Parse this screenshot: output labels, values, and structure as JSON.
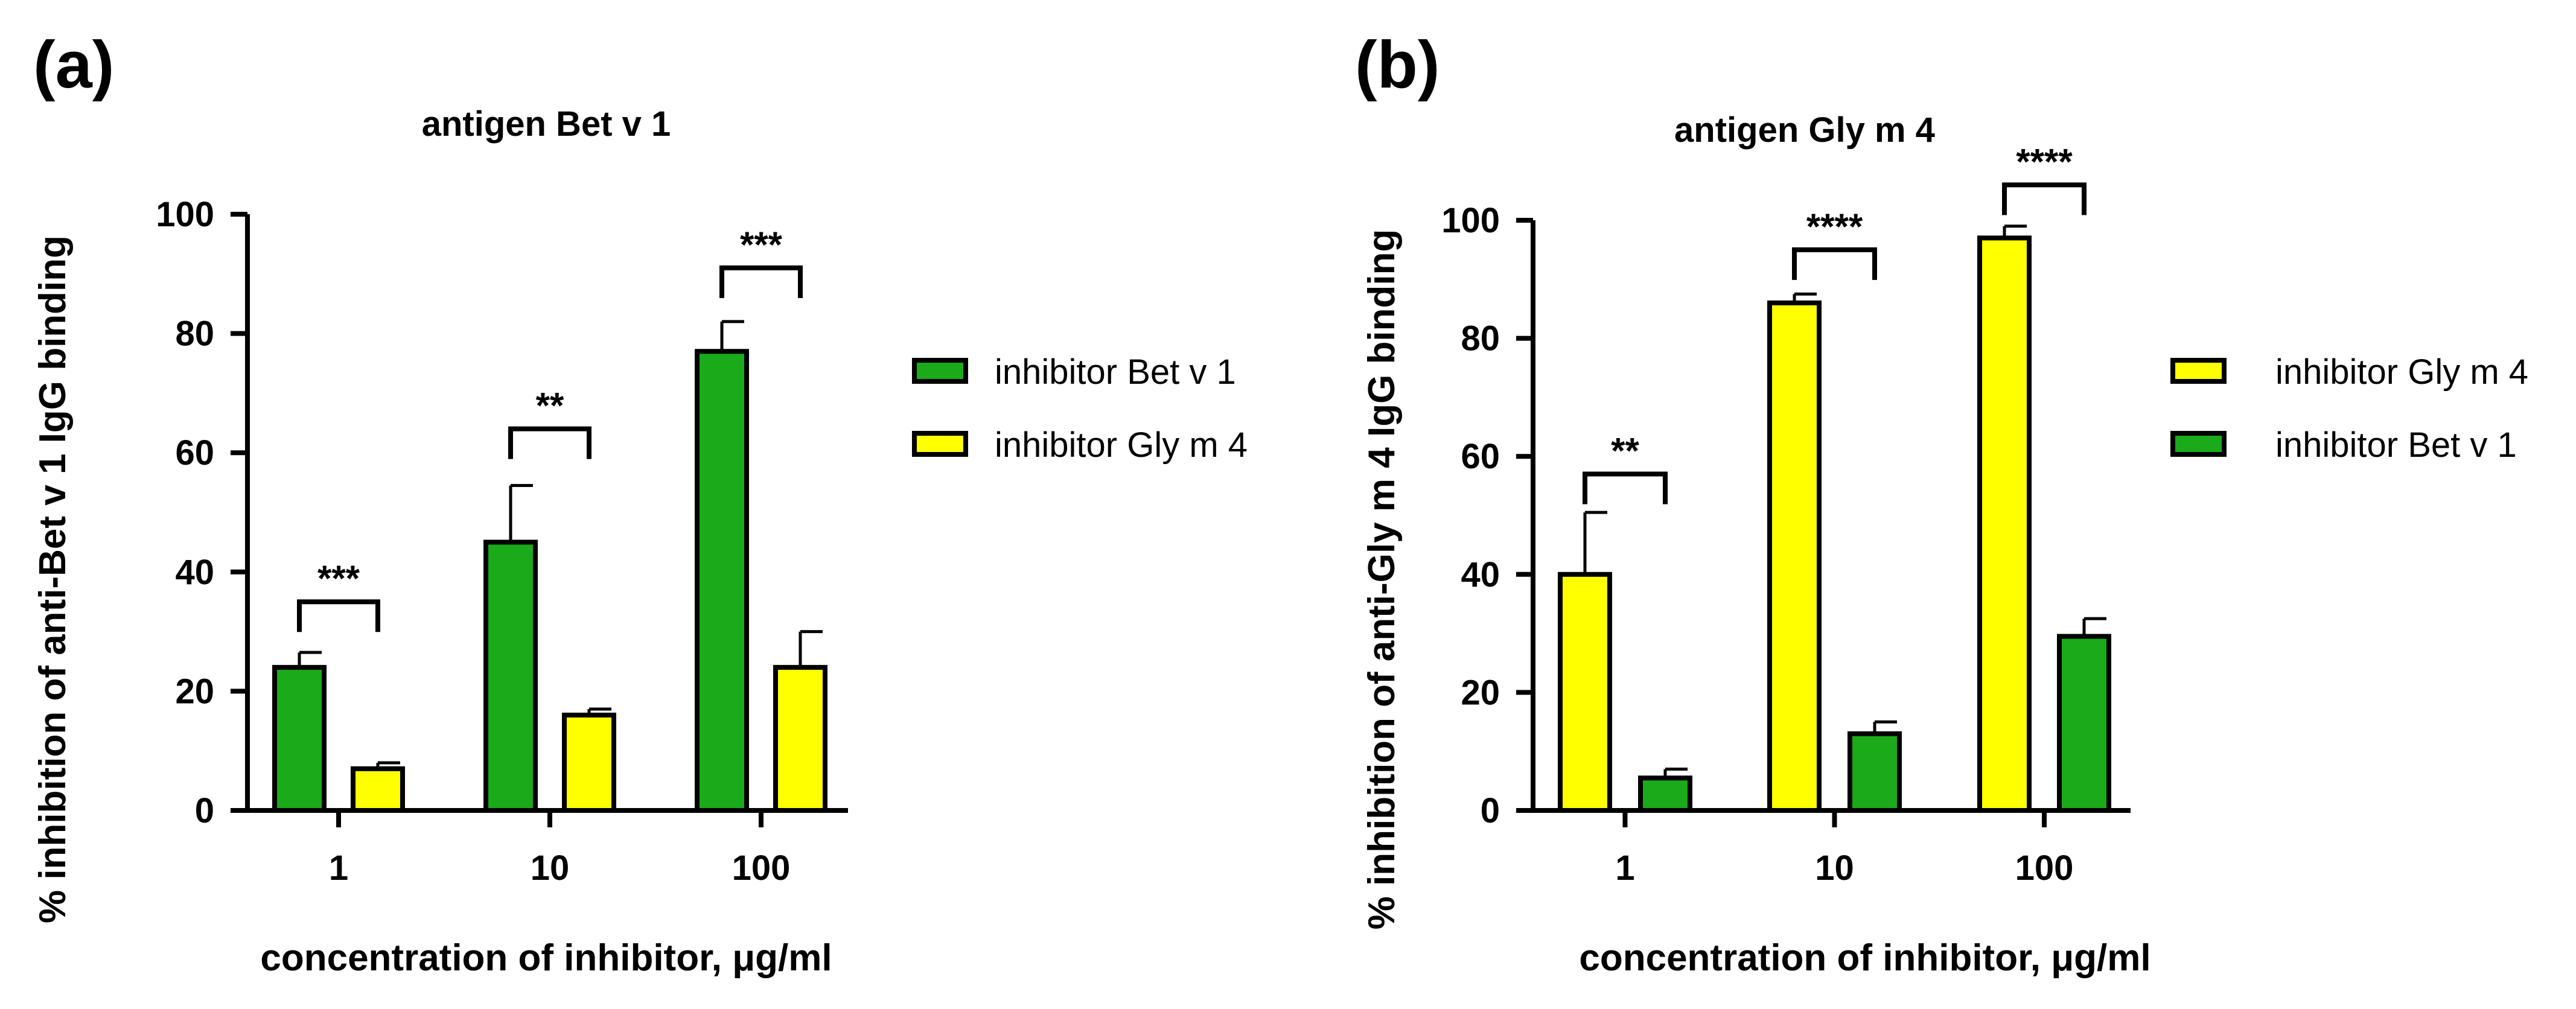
{
  "colors": {
    "green": "#1aaa1a",
    "yellow": "#ffff00",
    "axis": "#000000"
  },
  "chart_data": [
    {
      "type": "bar",
      "panel_label": "(a)",
      "title": "antigen Bet v 1",
      "xlabel": "concentration of inhibitor, μg/ml",
      "ylabel": "% inhibition of anti-Bet v 1 IgG binding",
      "categories": [
        "1",
        "10",
        "100"
      ],
      "ylim": [
        0,
        100
      ],
      "yticks": [
        0,
        20,
        40,
        60,
        80,
        100
      ],
      "ytick_labels": [
        "0",
        "20",
        "40",
        "60",
        "80",
        "100"
      ],
      "legend_position": "right",
      "series": [
        {
          "name": "inhibitor Bet v 1",
          "color": "green",
          "values": [
            24,
            45,
            77
          ],
          "errors": [
            2.5,
            9.5,
            5
          ]
        },
        {
          "name": "inhibitor Gly m 4",
          "color": "yellow",
          "values": [
            7,
            16,
            24
          ],
          "errors": [
            1,
            1,
            6
          ]
        }
      ],
      "significance": [
        {
          "category": 0,
          "label": "***",
          "level": 35
        },
        {
          "category": 1,
          "label": "**",
          "level": 64
        },
        {
          "category": 2,
          "label": "***",
          "level": 91
        }
      ]
    },
    {
      "type": "bar",
      "panel_label": "(b)",
      "title": "antigen Gly m 4",
      "xlabel": "concentration of inhibitor, μg/ml",
      "ylabel": "% inhibition of anti-Gly m 4  IgG binding",
      "categories": [
        "1",
        "10",
        "100"
      ],
      "ylim": [
        0,
        100
      ],
      "yticks": [
        0,
        20,
        40,
        60,
        80,
        100
      ],
      "ytick_labels": [
        "0",
        "20",
        "40",
        "60",
        "80",
        "100"
      ],
      "legend_position": "right",
      "series": [
        {
          "name": "inhibitor Gly m 4",
          "color": "yellow",
          "values": [
            40,
            86,
            97
          ],
          "errors": [
            10.5,
            1.5,
            2
          ]
        },
        {
          "name": "inhibitor Bet v 1",
          "color": "green",
          "values": [
            5.5,
            13,
            29.5
          ],
          "errors": [
            1.5,
            2,
            3
          ]
        }
      ],
      "significance": [
        {
          "category": 0,
          "label": "**",
          "level": 57
        },
        {
          "category": 1,
          "label": "****",
          "level": 95
        },
        {
          "category": 2,
          "label": "****",
          "level": 106
        }
      ]
    }
  ]
}
